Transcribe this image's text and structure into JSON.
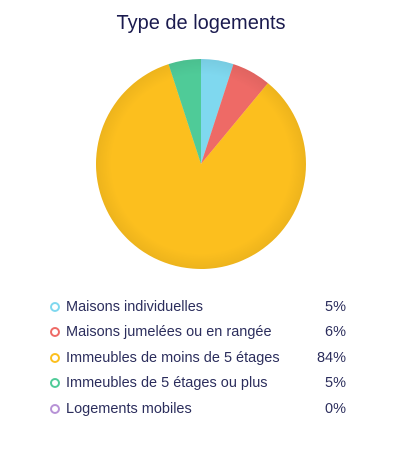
{
  "chart_data": {
    "type": "pie",
    "title": "Type de logements",
    "categories": [
      "Maisons individuelles",
      "Maisons jumelées ou en rangée",
      "Immeubles de moins de 5 étages",
      "Immeubles de 5 étages ou plus",
      "Logements mobiles"
    ],
    "values": [
      5,
      6,
      84,
      5,
      0
    ],
    "value_labels": [
      "5%",
      "6%",
      "84%",
      "5%",
      "0%"
    ],
    "colors": [
      "#7fd8ef",
      "#ee6a66",
      "#fcbf1e",
      "#4fcb98",
      "#b792d6"
    ],
    "legend_position": "bottom"
  }
}
